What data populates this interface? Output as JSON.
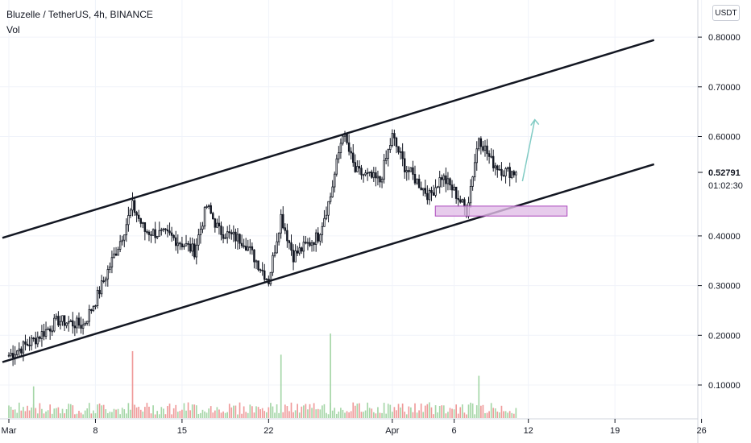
{
  "legend": {
    "symbol": "Bluzelle / TetherUS, 4h, BINANCE",
    "volume": "Vol"
  },
  "price_scale": {
    "currency": "USDT",
    "last_price": "0.52791",
    "countdown": "01:02:30"
  },
  "colors": {
    "up": "#26a69a",
    "down": "#131722",
    "volume_up": "#a5d6a7",
    "volume_down": "#ef9a9a",
    "trendline": "#131722",
    "zone_fill": "#e1bee7",
    "zone_stroke": "#ab47bc",
    "arrow": "#80cbc4"
  },
  "chart_data": {
    "type": "candlestick",
    "title": "",
    "interval": "4h",
    "y_ticks": [
      "0.10000",
      "0.20000",
      "0.30000",
      "0.40000",
      "0.60000",
      "0.70000",
      "0.80000"
    ],
    "ylim": [
      0.0,
      0.87
    ],
    "x_ticks": [
      "Mar",
      "8",
      "15",
      "22",
      "Apr",
      "6",
      "12",
      "19",
      "26"
    ],
    "close_anchors": [
      {
        "date": "Mar 1",
        "close": 0.16
      },
      {
        "date": "Mar 3",
        "close": 0.19
      },
      {
        "date": "Mar 5",
        "close": 0.23
      },
      {
        "date": "Mar 7",
        "close": 0.22
      },
      {
        "date": "Mar 8",
        "close": 0.27
      },
      {
        "date": "Mar 10",
        "close": 0.39
      },
      {
        "date": "Mar 11",
        "close": 0.46
      },
      {
        "date": "Mar 12",
        "close": 0.41
      },
      {
        "date": "Mar 14",
        "close": 0.4
      },
      {
        "date": "Mar 16",
        "close": 0.37
      },
      {
        "date": "Mar 17",
        "close": 0.46
      },
      {
        "date": "Mar 18",
        "close": 0.41
      },
      {
        "date": "Mar 20",
        "close": 0.39
      },
      {
        "date": "Mar 22",
        "close": 0.31
      },
      {
        "date": "Mar 23",
        "close": 0.44
      },
      {
        "date": "Mar 24",
        "close": 0.36
      },
      {
        "date": "Mar 26",
        "close": 0.4
      },
      {
        "date": "Mar 27",
        "close": 0.48
      },
      {
        "date": "Mar 28",
        "close": 0.61
      },
      {
        "date": "Mar 29",
        "close": 0.53
      },
      {
        "date": "Mar 31",
        "close": 0.51
      },
      {
        "date": "Apr 1",
        "close": 0.6
      },
      {
        "date": "Apr 2",
        "close": 0.54
      },
      {
        "date": "Apr 4",
        "close": 0.48
      },
      {
        "date": "Apr 5",
        "close": 0.52
      },
      {
        "date": "Apr 6",
        "close": 0.49
      },
      {
        "date": "Apr 7",
        "close": 0.45
      },
      {
        "date": "Apr 8",
        "close": 0.6
      },
      {
        "date": "Apr 9",
        "close": 0.55
      },
      {
        "date": "Apr 10",
        "close": 0.53
      },
      {
        "date": "Apr 11",
        "close": 0.528
      }
    ],
    "volume_spikes": [
      {
        "date": "Mar 3",
        "volume": 0.09
      },
      {
        "date": "Mar 11",
        "volume": 0.19
      },
      {
        "date": "Mar 23",
        "volume": 0.18
      },
      {
        "date": "Mar 27",
        "volume": 0.24
      },
      {
        "date": "Apr 8",
        "volume": 0.12
      }
    ],
    "channel": {
      "upper": [
        {
          "date": "Mar 1",
          "price": 0.4
        },
        {
          "date": "Apr 15",
          "price": 0.74
        }
      ],
      "lower": [
        {
          "date": "Mar 1",
          "price": 0.15
        },
        {
          "date": "Apr 15",
          "price": 0.49
        }
      ]
    },
    "support_zone": {
      "from": "Apr 5",
      "to": "Apr 15",
      "low": 0.44,
      "high": 0.46
    },
    "target_arrow": {
      "from_date": "Apr 11",
      "from_price": 0.51,
      "to_date": "Apr 12",
      "to_price": 0.65
    }
  }
}
